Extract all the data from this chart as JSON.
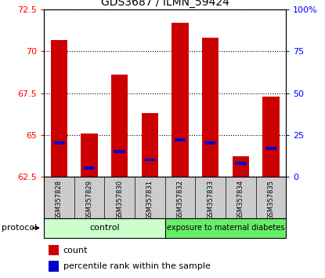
{
  "title": "GDS3687 / ILMN_59424",
  "samples": [
    "GSM357828",
    "GSM357829",
    "GSM357830",
    "GSM357831",
    "GSM357832",
    "GSM357833",
    "GSM357834",
    "GSM357835"
  ],
  "count_values": [
    70.7,
    65.1,
    68.6,
    66.3,
    71.7,
    70.8,
    63.7,
    67.3
  ],
  "base_value": 62.5,
  "ylim_left": [
    62.5,
    72.5
  ],
  "ylim_right": [
    0,
    100
  ],
  "yticks_left": [
    62.5,
    65.0,
    67.5,
    70.0,
    72.5
  ],
  "yticks_right": [
    0,
    25,
    50,
    75,
    100
  ],
  "ytick_labels_left": [
    "62.5",
    "65",
    "67.5",
    "70",
    "72.5"
  ],
  "ytick_labels_right": [
    "0",
    "25",
    "50",
    "75",
    "100%"
  ],
  "bar_color": "#cc0000",
  "percentile_color": "#0000cc",
  "bar_width": 0.55,
  "control_label": "control",
  "treatment_label": "exposure to maternal diabetes",
  "control_color": "#ccffcc",
  "treatment_color": "#66ee66",
  "protocol_label": "protocol",
  "legend_count": "count",
  "legend_percentile": "percentile rank within the sample",
  "xlabel_bg": "#cccccc",
  "blue_dot_percentile": [
    20,
    5,
    15,
    10,
    22,
    20,
    8,
    17
  ]
}
